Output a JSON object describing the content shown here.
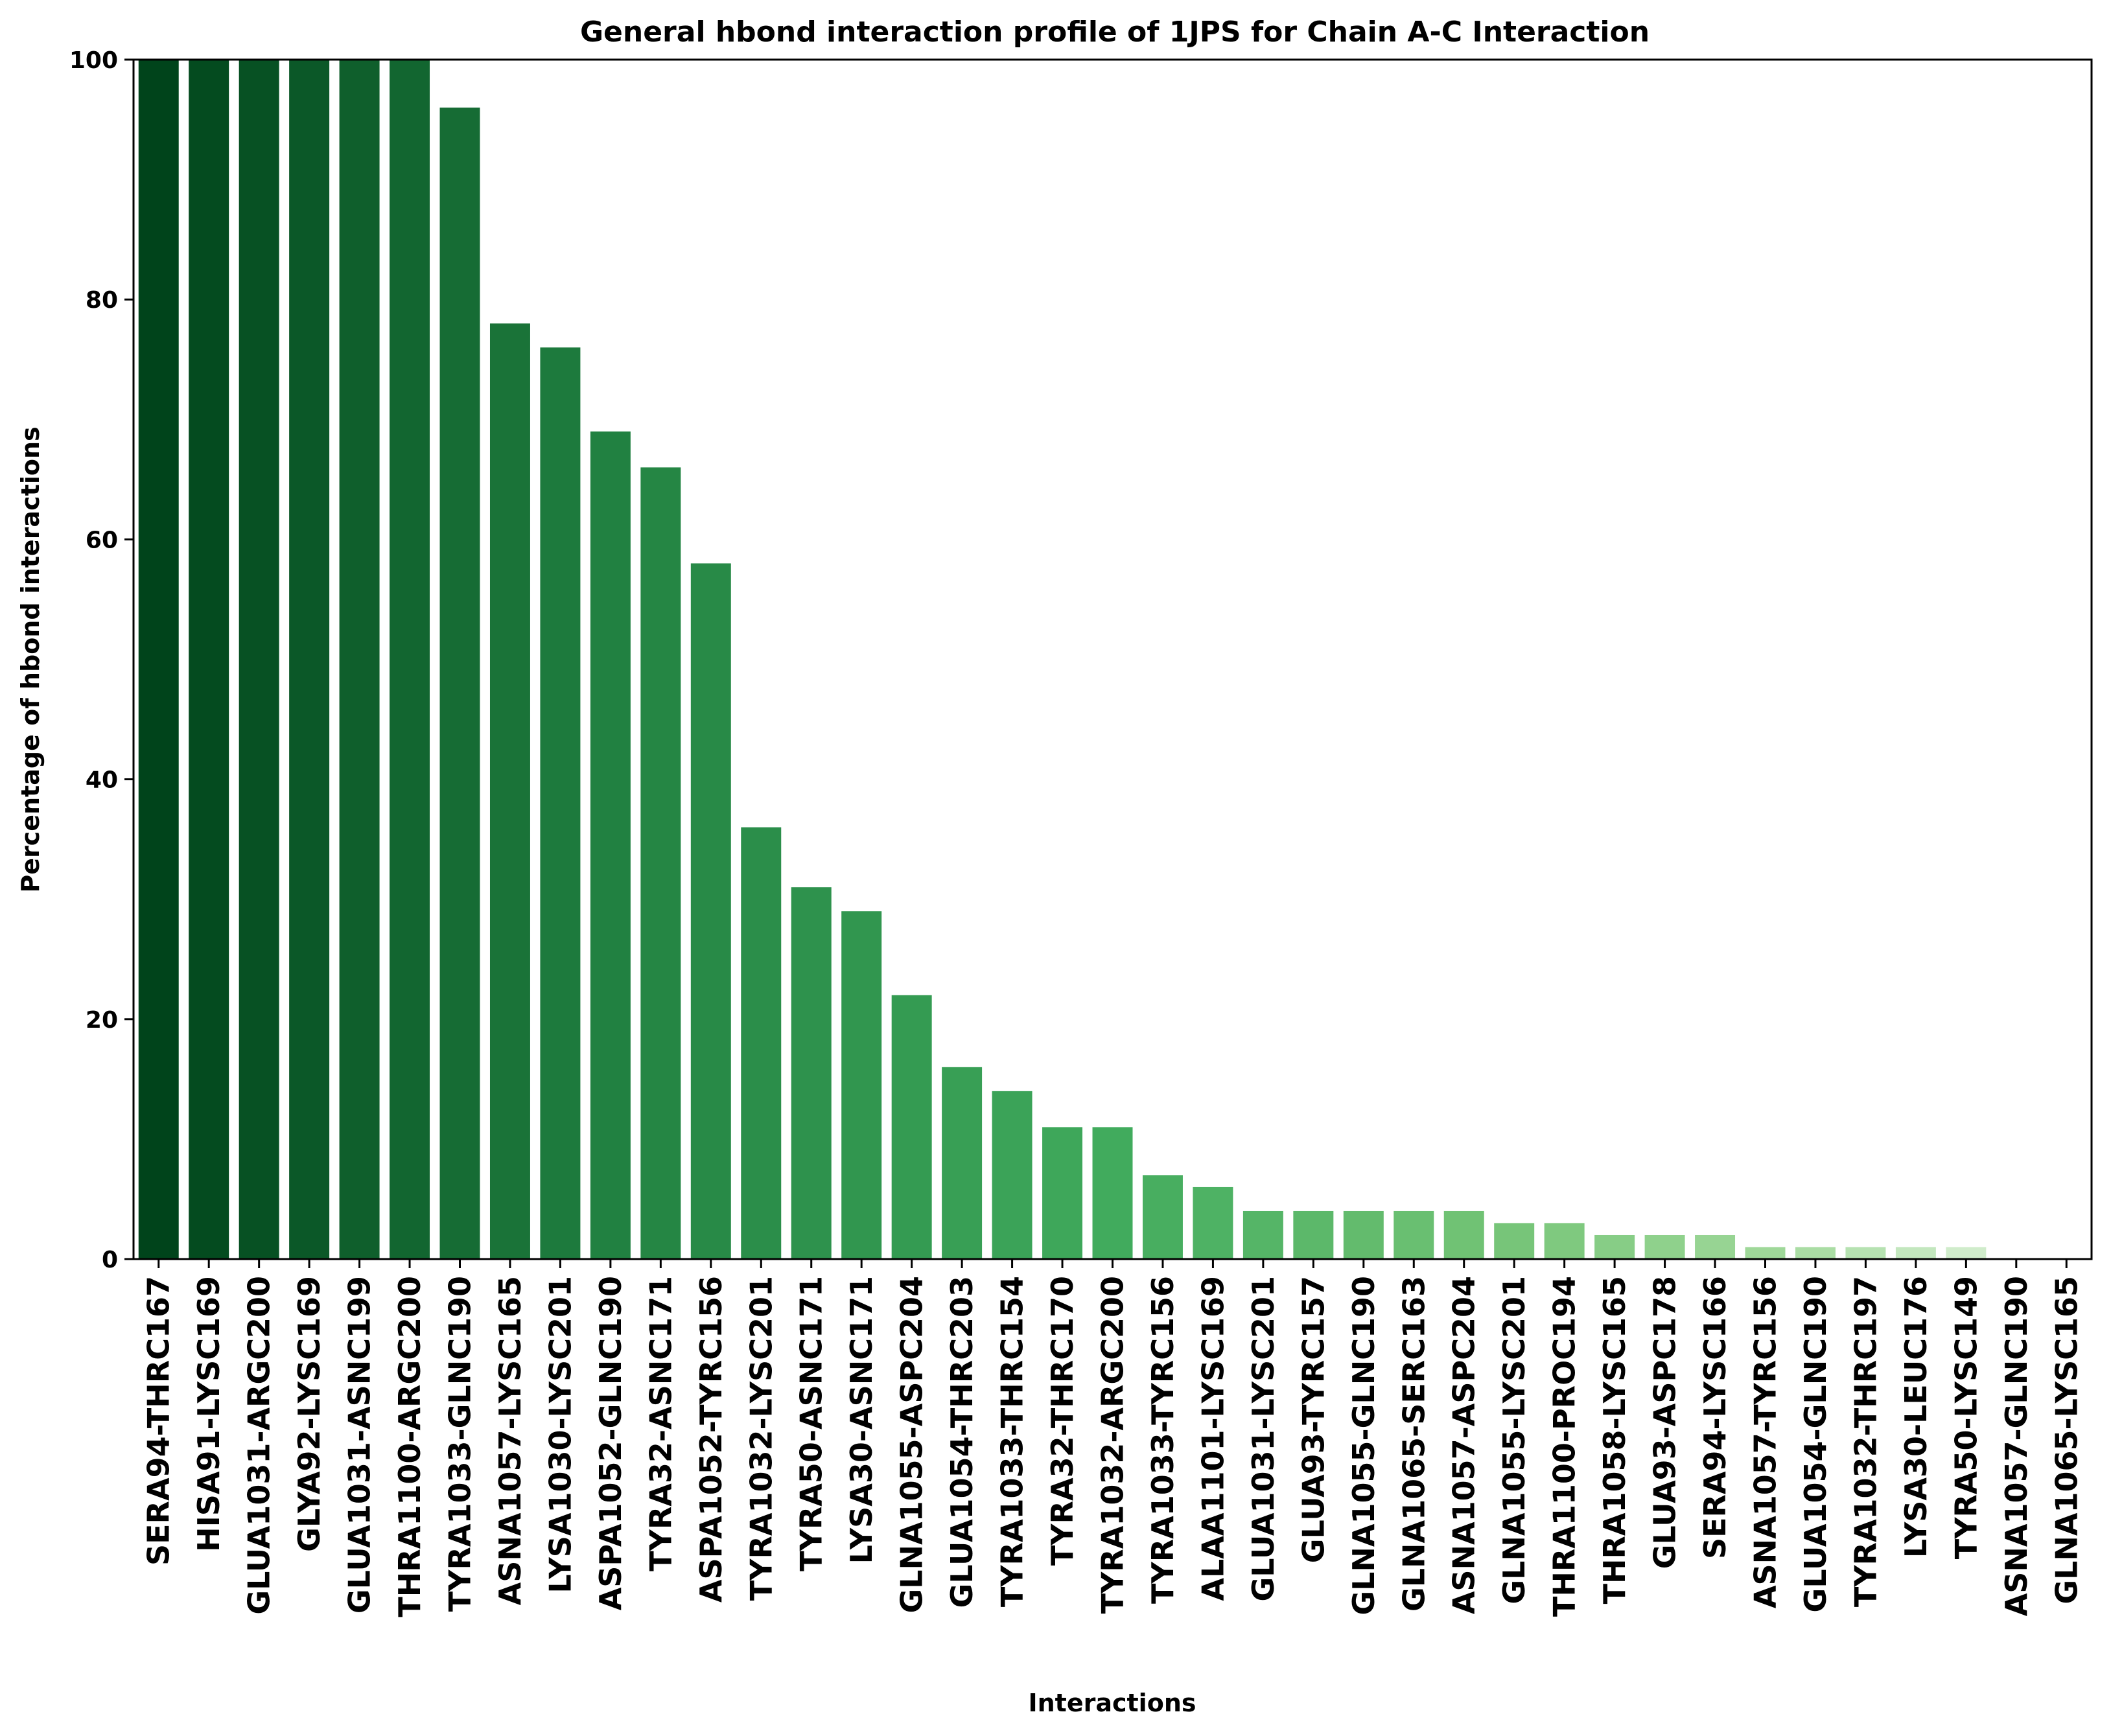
{
  "chart_data": {
    "type": "bar",
    "title": "General hbond interaction profile of 1JPS for Chain A-C Interaction",
    "xlabel": "Interactions",
    "ylabel": "Percentage of hbond interactions",
    "ylim": [
      0,
      100
    ],
    "yticks": [
      "0",
      "20",
      "40",
      "60",
      "80",
      "100"
    ],
    "grid": false,
    "legend": "none",
    "color_scale": {
      "darkest": "#00441b",
      "lightest": "#f7fcf5"
    },
    "categories": [
      "SERA94-THRC167",
      "HISA91-LYSC169",
      "GLUA1031-ARGC200",
      "GLYA92-LYSC169",
      "GLUA1031-ASNC199",
      "THRA1100-ARGC200",
      "TYRA1033-GLNC190",
      "ASNA1057-LYSC165",
      "LYSA1030-LYSC201",
      "ASPA1052-GLNC190",
      "TYRA32-ASNC171",
      "ASPA1052-TYRC156",
      "TYRA1032-LYSC201",
      "TYRA50-ASNC171",
      "LYSA30-ASNC171",
      "GLNA1055-ASPC204",
      "GLUA1054-THRC203",
      "TYRA1033-THRC154",
      "TYRA32-THRC170",
      "TYRA1032-ARGC200",
      "TYRA1033-TYRC156",
      "ALAA1101-LYSC169",
      "GLUA1031-LYSC201",
      "GLUA93-TYRC157",
      "GLNA1055-GLNC190",
      "GLNA1065-SERC163",
      "ASNA1057-ASPC204",
      "GLNA1055-LYSC201",
      "THRA1100-PROC194",
      "THRA1058-LYSC165",
      "GLUA93-ASPC178",
      "SERA94-LYSC166",
      "ASNA1057-TYRC156",
      "GLUA1054-GLNC190",
      "TYRA1032-THRC197",
      "LYSA30-LEUC176",
      "TYRA50-LYSC149",
      "ASNA1057-GLNC190",
      "GLNA1065-LYSC165"
    ],
    "values": [
      100,
      100,
      100,
      100,
      100,
      100,
      96,
      78,
      76,
      69,
      66,
      58,
      36,
      31,
      29,
      22,
      16,
      14,
      11,
      11,
      7,
      6,
      4,
      4,
      4,
      4,
      4,
      3,
      3,
      2,
      2,
      2,
      1,
      1,
      1,
      1,
      1,
      0,
      0
    ]
  }
}
